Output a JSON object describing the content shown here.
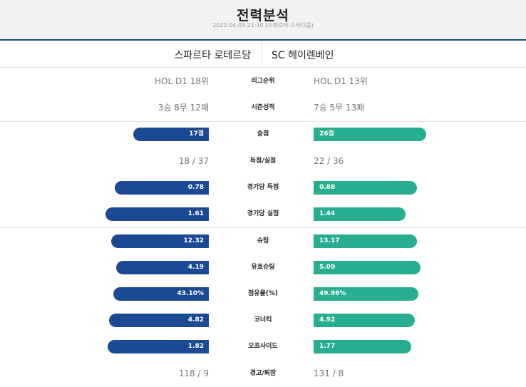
{
  "header": {
    "title": "전력분석",
    "subtitle": "2022.04.03 21:30 (스파르타 스타디움)"
  },
  "teams": {
    "home": "스파르타 로테르담",
    "away": "SC 헤이렌베인"
  },
  "colors": {
    "home_bar": "#1c4994",
    "away_bar": "#27ae91"
  },
  "stats": [
    {
      "label": "리그순위",
      "type": "text",
      "home": "HOL D1 18위",
      "away": "HOL D1 13위"
    },
    {
      "label": "시즌성적",
      "type": "text",
      "home": "3승 8무 12패",
      "away": "7승 5무 13패"
    },
    {
      "label": "승점",
      "type": "bar",
      "home": "17점",
      "away": "26점",
      "home_fill": 0.64,
      "away_fill": 0.96
    },
    {
      "label": "득점/실점",
      "type": "text",
      "home": "18 / 37",
      "away": "22 / 36"
    },
    {
      "label": "경기당 득점",
      "type": "bar",
      "home": "0.78",
      "away": "0.88",
      "home_fill": 0.8,
      "away_fill": 0.88
    },
    {
      "label": "경기당 실점",
      "type": "bar",
      "home": "1.61",
      "away": "1.44",
      "home_fill": 0.88,
      "away_fill": 0.78
    },
    {
      "label": "슈팅",
      "type": "bar",
      "home": "12.32",
      "away": "13.17",
      "home_fill": 0.83,
      "away_fill": 0.88
    },
    {
      "label": "유효슈팅",
      "type": "bar",
      "home": "4.19",
      "away": "5.09",
      "home_fill": 0.79,
      "away_fill": 0.91
    },
    {
      "label": "점유율(%)",
      "type": "bar",
      "home": "43.10%",
      "away": "49.96%",
      "home_fill": 0.81,
      "away_fill": 0.89
    },
    {
      "label": "코너킥",
      "type": "bar",
      "home": "4.82",
      "away": "4.92",
      "home_fill": 0.85,
      "away_fill": 0.86
    },
    {
      "label": "오프사이드",
      "type": "bar",
      "home": "1.82",
      "away": "1.77",
      "home_fill": 0.86,
      "away_fill": 0.83
    },
    {
      "label": "경고/퇴장",
      "type": "text",
      "home": "118 / 9",
      "away": "131 / 8"
    }
  ]
}
